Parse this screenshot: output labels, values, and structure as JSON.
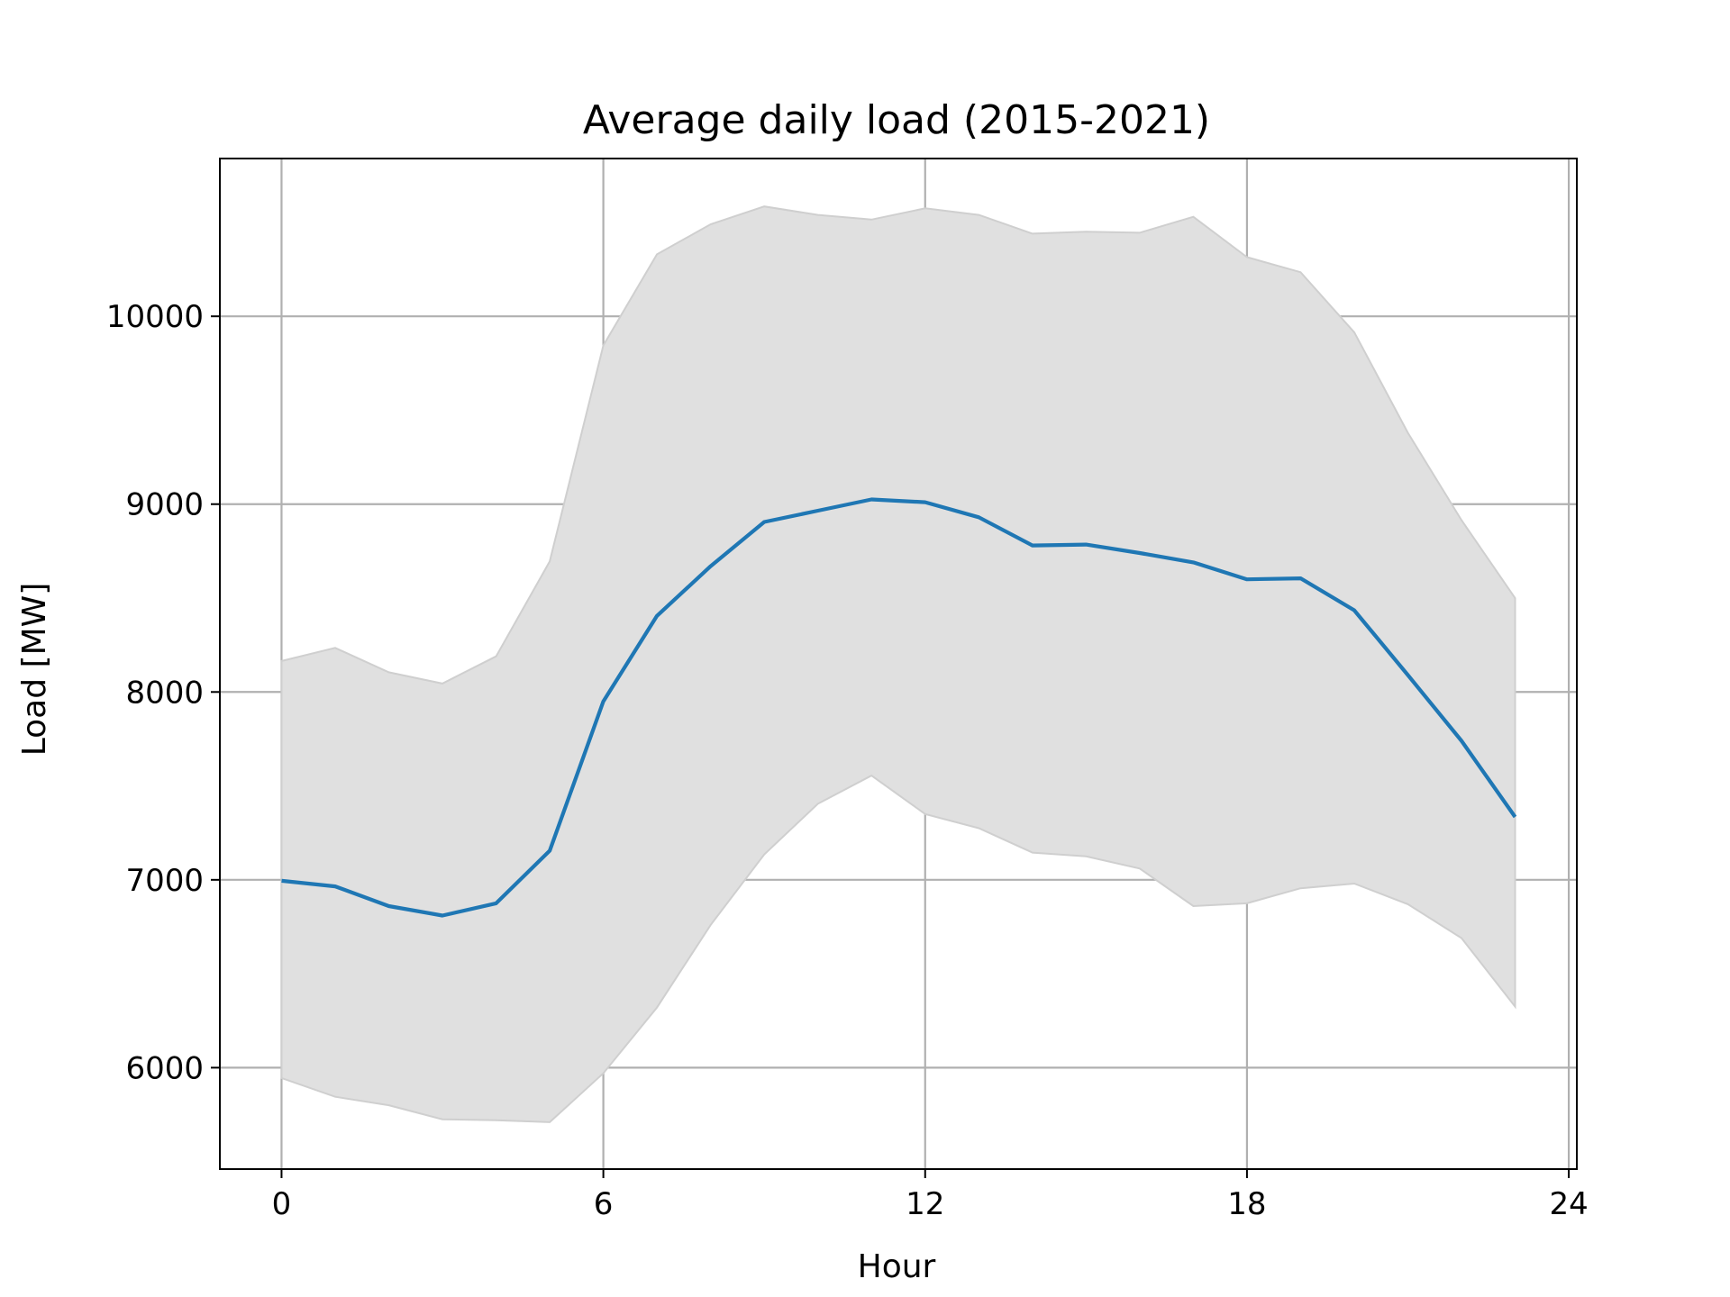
{
  "chart_data": {
    "type": "line",
    "title": "Average daily load (2015-2021)",
    "xlabel": "Hour",
    "ylabel": "Load [MW]",
    "xlim": [
      -1.15,
      24.15
    ],
    "ylim": [
      5460,
      10840
    ],
    "xticks": [
      0,
      6,
      12,
      18,
      24
    ],
    "yticks": [
      6000,
      7000,
      8000,
      9000,
      10000
    ],
    "grid": true,
    "legend": "none",
    "colors": {
      "line": "#1f77b4",
      "band": "#e0e0e0",
      "band_edge": "#cfcfcf"
    },
    "x": [
      0,
      1,
      2,
      3,
      4,
      5,
      6,
      7,
      8,
      9,
      10,
      11,
      12,
      13,
      14,
      15,
      16,
      17,
      18,
      19,
      20,
      21,
      22,
      23
    ],
    "series": [
      {
        "values": [
          6995,
          6965,
          6860,
          6810,
          6875,
          7155,
          7950,
          8405,
          8670,
          8905,
          8965,
          9025,
          9010,
          8930,
          8780,
          8785,
          8740,
          8690,
          8600,
          8605,
          8435,
          8090,
          7740,
          7335
        ]
      }
    ],
    "band": {
      "lower": [
        5945,
        5845,
        5800,
        5725,
        5720,
        5710,
        5970,
        6320,
        6760,
        7135,
        7405,
        7555,
        7350,
        7275,
        7145,
        7125,
        7060,
        6860,
        6875,
        6955,
        6980,
        6870,
        6690,
        6325
      ],
      "upper": [
        8165,
        8235,
        8105,
        8045,
        8190,
        8695,
        9845,
        10330,
        10490,
        10585,
        10540,
        10515,
        10575,
        10540,
        10440,
        10450,
        10445,
        10530,
        10315,
        10235,
        9915,
        9380,
        8915,
        8500
      ]
    }
  }
}
